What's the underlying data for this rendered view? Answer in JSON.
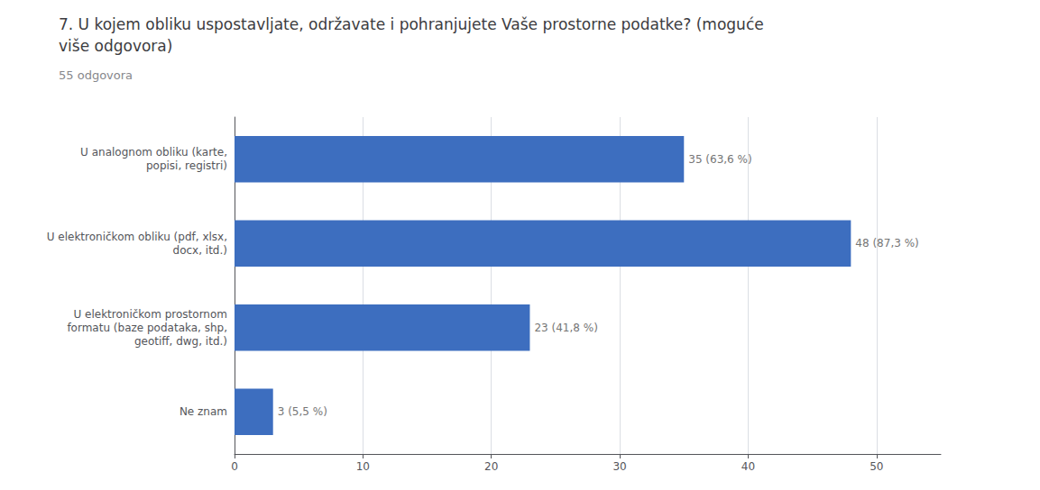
{
  "chart_data": {
    "type": "bar",
    "orientation": "horizontal",
    "title": "7. U kojem obliku uspostavljate, održavate i pohranjujete Vaše prostorne podatke? (moguće\nviše odgovora)",
    "subtitle": "55 odgovora",
    "categories": [
      "Ne znam",
      "U elektroničkom prostornom\nformatu (baze podataka, shp,\ngeotiff, dwg, itd.)",
      "U elektroničkom obliku (pdf, xlsx,\ndocx, itd.)",
      "U analognom obliku (karte,\npopisi, registri)"
    ],
    "values": [
      3,
      23,
      48,
      35
    ],
    "value_labels": [
      "3 (5,5 %)",
      "23 (41,8 %)",
      "48 (87,3 %)",
      "35 (63,6 %)"
    ],
    "data_labels": true,
    "color": "#3d6ebf",
    "xlim": [
      0,
      55
    ],
    "xticks": [
      0,
      10,
      20,
      30,
      40,
      50
    ],
    "grid": true
  }
}
